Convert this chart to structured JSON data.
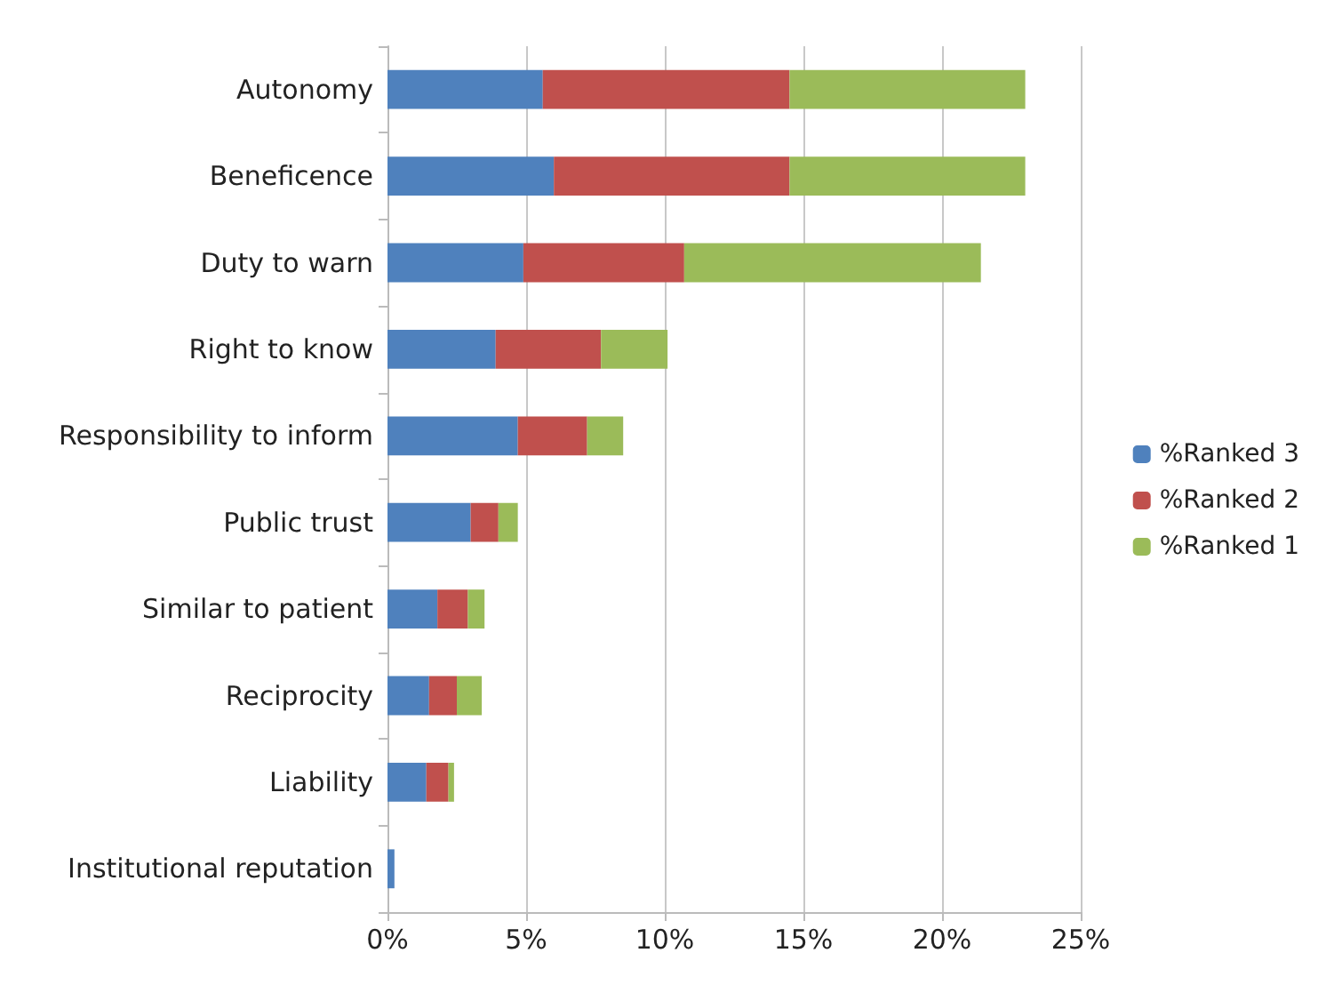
{
  "chart_data": {
    "type": "bar",
    "orientation": "horizontal",
    "stacked": true,
    "categories": [
      "Autonomy",
      "Beneficence",
      "Duty to warn",
      "Right to know",
      "Responsibility to inform",
      "Public trust",
      "Similar to patient",
      "Reciprocity",
      "Liability",
      "Institutional reputation"
    ],
    "series": [
      {
        "name": "%Ranked 3",
        "color": "#4f81bd",
        "values": [
          5.6,
          6.0,
          4.9,
          3.9,
          4.7,
          3.0,
          1.8,
          1.5,
          1.4,
          0.25
        ]
      },
      {
        "name": "%Ranked 2",
        "color": "#c0504d",
        "values": [
          8.9,
          8.5,
          5.8,
          3.8,
          2.5,
          1.0,
          1.1,
          1.0,
          0.8,
          0
        ]
      },
      {
        "name": "%Ranked 1",
        "color": "#9bbb59",
        "values": [
          8.5,
          8.5,
          10.7,
          2.4,
          1.3,
          0.7,
          0.6,
          0.9,
          0.2,
          0
        ]
      }
    ],
    "xlim": [
      0,
      25
    ],
    "xticks": [
      {
        "value": 0,
        "label": "0%"
      },
      {
        "value": 5,
        "label": "5%"
      },
      {
        "value": 10,
        "label": "10%"
      },
      {
        "value": 15,
        "label": "15%"
      },
      {
        "value": 20,
        "label": "20%"
      },
      {
        "value": 25,
        "label": "25%"
      }
    ],
    "grid": "x",
    "legend": "right"
  }
}
